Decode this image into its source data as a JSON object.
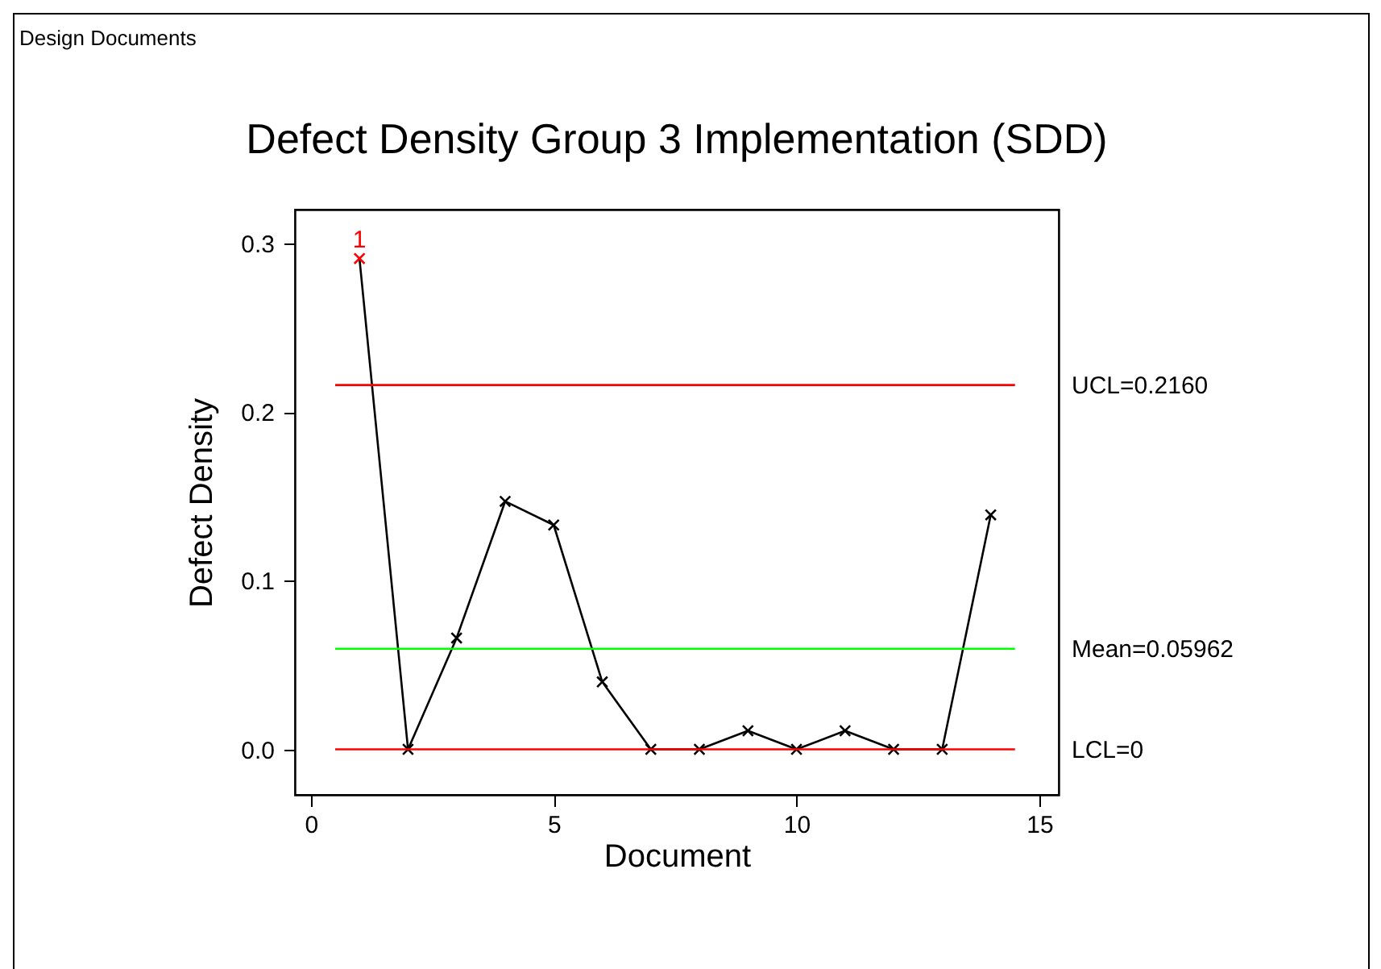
{
  "chart_data": {
    "type": "line",
    "title": "Defect Density Group 3 Implementation (SDD)",
    "xlabel": "Document",
    "ylabel": "Defect Density",
    "annotations": [
      "Design Documents",
      {
        "text": "1",
        "x": 1,
        "y": 0.291
      }
    ],
    "x": [
      1,
      2,
      3,
      4,
      5,
      6,
      7,
      8,
      9,
      10,
      11,
      12,
      13,
      14
    ],
    "series": [
      {
        "color": "#000000",
        "values": [
          0.291,
          0,
          0.066,
          0.147,
          0.133,
          0.04,
          0,
          0,
          0.011,
          0,
          0.011,
          0,
          0,
          0.139
        ],
        "colors": [
          "#ff0000",
          "#000000",
          "#000000",
          "#000000",
          "#000000",
          "#000000",
          "#000000",
          "#000000",
          "#000000",
          "#000000",
          "#000000",
          "#000000",
          "#000000",
          "#000000"
        ]
      }
    ],
    "xlim": [
      -0.33,
      15.4
    ],
    "xticks": [
      0,
      5,
      10,
      15
    ],
    "ylim": [
      -0.027,
      0.32
    ],
    "yticks": [
      {
        "value": 0,
        "label": "0.0"
      },
      {
        "value": 0.1,
        "label": "0.1"
      },
      {
        "value": 0.2,
        "label": "0.2"
      },
      {
        "value": 0.3,
        "label": "0.3"
      }
    ],
    "ref_lines": [
      {
        "axis": "y",
        "value": 0.216,
        "label": "UCL=0.2160",
        "color": "#ff0000"
      },
      {
        "axis": "y",
        "value": 0.05962,
        "label": "Mean=0.05962",
        "color": "#00ff00"
      },
      {
        "axis": "y",
        "value": 0,
        "label": "LCL=0",
        "color": "#ff0000"
      }
    ],
    "grid": false,
    "marker": "cross",
    "line_style": "solid"
  }
}
